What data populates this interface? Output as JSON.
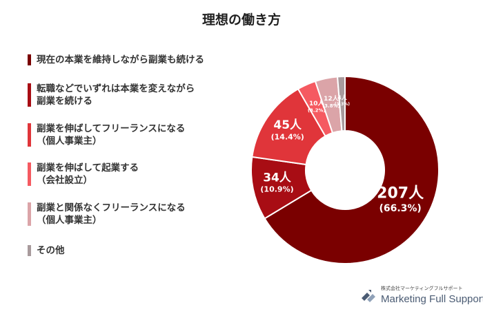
{
  "chart_data": {
    "type": "pie",
    "title": "理想の働き方",
    "categories": [
      "現在の本業を維持しながら副業も続ける",
      "転職などでいずれは本業を変えながら副業を続ける",
      "副業を伸ばしてフリーランスになる（個人事業主）",
      "副業を伸ばして起業する（会社設立）",
      "副業と関係なくフリーランスになる（個人事業主）",
      "その他"
    ],
    "legend_lines": [
      [
        "現在の本業を維持しながら副業も続ける"
      ],
      [
        "転職などでいずれは本業を変えながら",
        "副業を続ける"
      ],
      [
        "副業を伸ばしてフリーランスになる",
        "（個人事業主）"
      ],
      [
        "副業を伸ばして起業する",
        "（会社設立）"
      ],
      [
        "副業と関係なくフリーランスになる",
        "（個人事業主）"
      ],
      [
        "その他"
      ]
    ],
    "values": [
      207,
      34,
      45,
      10,
      12,
      4
    ],
    "value_labels": [
      "207人",
      "34人",
      "45人",
      "10人",
      "12人",
      "4人"
    ],
    "percent_labels": [
      "(66.3%)",
      "(10.9%)",
      "(14.4%)",
      "(3.2%)",
      "(3.8%)",
      "(1.3%)"
    ],
    "colors": [
      "#7a0000",
      "#a80d14",
      "#e0353a",
      "#f55a61",
      "#dba4a8",
      "#a89a9c"
    ],
    "label_colors": [
      "#ffffff",
      "#ffffff",
      "#ffffff",
      "#ffffff",
      "#ffffff",
      "#ffffff"
    ],
    "legend_placement": "left",
    "donut": true
  },
  "footer": {
    "company": "株式会社マーケティングフルサポート",
    "brand": "Marketing Full Support"
  }
}
